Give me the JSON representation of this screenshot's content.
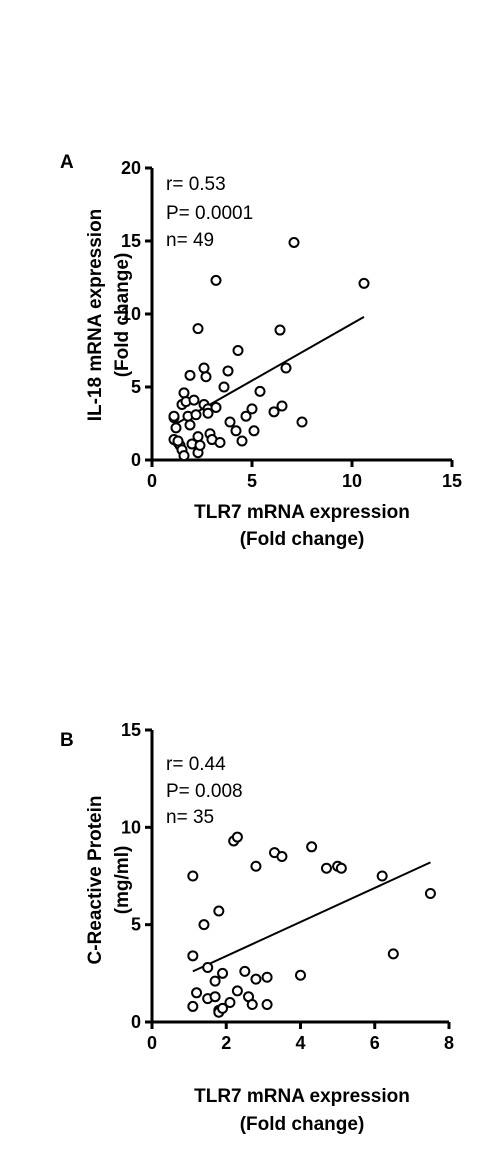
{
  "chart_data": [
    {
      "type": "scatter",
      "panel": "A",
      "stats": [
        "r= 0.53",
        "P= 0.0001",
        "n= 49"
      ],
      "xlabel": [
        "TLR7 mRNA expression",
        "(Fold change)"
      ],
      "ylabel": [
        "IL-18 mRNA expression",
        "(Fold change)"
      ],
      "xlim": [
        0,
        15
      ],
      "ylim": [
        0,
        20
      ],
      "xticks": [
        0,
        5,
        10,
        15
      ],
      "yticks": [
        0,
        5,
        10,
        15,
        20
      ],
      "grid": false,
      "points": [
        [
          1.1,
          2.9
        ],
        [
          1.1,
          3.0
        ],
        [
          1.2,
          2.2
        ],
        [
          1.1,
          1.4
        ],
        [
          1.3,
          1.2
        ],
        [
          1.4,
          1.0
        ],
        [
          1.5,
          0.7
        ],
        [
          1.6,
          0.3
        ],
        [
          1.5,
          3.8
        ],
        [
          1.6,
          4.6
        ],
        [
          1.7,
          4.0
        ],
        [
          1.8,
          3.0
        ],
        [
          1.9,
          2.4
        ],
        [
          2.0,
          1.1
        ],
        [
          1.9,
          5.8
        ],
        [
          2.1,
          4.1
        ],
        [
          2.2,
          3.1
        ],
        [
          2.3,
          1.6
        ],
        [
          2.3,
          0.5
        ],
        [
          2.4,
          1.0
        ],
        [
          2.3,
          9.0
        ],
        [
          2.6,
          6.3
        ],
        [
          2.7,
          5.7
        ],
        [
          2.6,
          3.8
        ],
        [
          2.8,
          3.5
        ],
        [
          2.9,
          1.8
        ],
        [
          3.0,
          1.4
        ],
        [
          3.2,
          12.3
        ],
        [
          3.2,
          3.6
        ],
        [
          3.4,
          1.2
        ],
        [
          3.6,
          5.0
        ],
        [
          3.8,
          6.1
        ],
        [
          3.9,
          2.6
        ],
        [
          4.3,
          7.5
        ],
        [
          4.2,
          2.0
        ],
        [
          4.5,
          1.3
        ],
        [
          4.7,
          3.0
        ],
        [
          5.0,
          3.5
        ],
        [
          5.1,
          2.0
        ],
        [
          5.4,
          4.7
        ],
        [
          6.1,
          3.3
        ],
        [
          6.4,
          8.9
        ],
        [
          6.5,
          3.7
        ],
        [
          6.7,
          6.3
        ],
        [
          7.1,
          14.9
        ],
        [
          7.5,
          2.6
        ],
        [
          10.6,
          12.1
        ],
        [
          2.8,
          3.2
        ],
        [
          1.3,
          1.3
        ]
      ],
      "fit": {
        "x1": 1.1,
        "y1": 2.4,
        "x2": 10.6,
        "y2": 9.8
      }
    },
    {
      "type": "scatter",
      "panel": "B",
      "stats": [
        "r= 0.44",
        "P= 0.008",
        "n= 35"
      ],
      "xlabel": [
        "TLR7 mRNA expression",
        "(Fold change)"
      ],
      "ylabel": [
        "C-Reactive Protein",
        "(mg/ml)"
      ],
      "xlim": [
        0,
        8
      ],
      "ylim": [
        0,
        15
      ],
      "xticks": [
        0,
        2,
        4,
        6,
        8
      ],
      "yticks": [
        0,
        5,
        10,
        15
      ],
      "grid": false,
      "points": [
        [
          1.1,
          7.5
        ],
        [
          1.1,
          3.4
        ],
        [
          1.1,
          0.8
        ],
        [
          1.2,
          1.5
        ],
        [
          1.4,
          5.0
        ],
        [
          1.5,
          2.8
        ],
        [
          1.5,
          1.2
        ],
        [
          1.7,
          2.1
        ],
        [
          1.7,
          1.3
        ],
        [
          1.8,
          0.6
        ],
        [
          1.8,
          5.7
        ],
        [
          1.8,
          0.5
        ],
        [
          1.9,
          2.5
        ],
        [
          1.9,
          0.7
        ],
        [
          2.1,
          1.0
        ],
        [
          2.2,
          9.3
        ],
        [
          2.3,
          9.5
        ],
        [
          2.3,
          1.6
        ],
        [
          2.5,
          2.6
        ],
        [
          2.6,
          1.3
        ],
        [
          2.7,
          0.9
        ],
        [
          2.8,
          2.2
        ],
        [
          2.8,
          8.0
        ],
        [
          3.1,
          0.9
        ],
        [
          3.1,
          2.3
        ],
        [
          3.3,
          8.7
        ],
        [
          3.5,
          8.5
        ],
        [
          4.0,
          2.4
        ],
        [
          4.3,
          9.0
        ],
        [
          4.7,
          7.9
        ],
        [
          5.0,
          8.0
        ],
        [
          5.1,
          7.9
        ],
        [
          6.2,
          7.5
        ],
        [
          6.5,
          3.5
        ],
        [
          7.5,
          6.6
        ]
      ],
      "fit": {
        "x1": 1.1,
        "y1": 2.6,
        "x2": 7.5,
        "y2": 8.2
      }
    }
  ]
}
